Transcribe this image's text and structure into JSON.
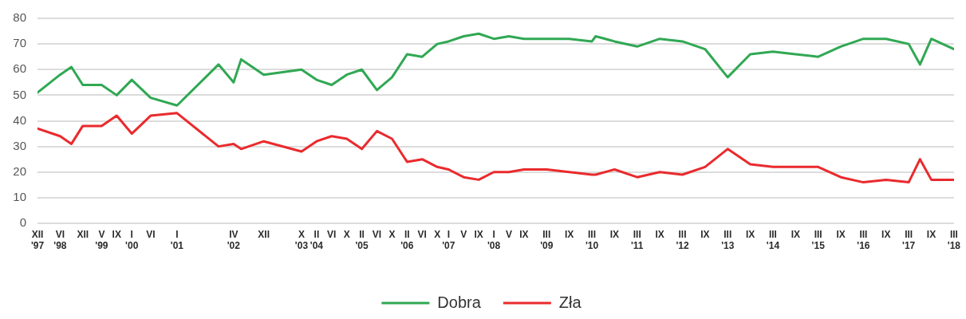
{
  "chart_data": {
    "type": "line",
    "x": [
      "1997-12",
      "1998-06",
      "1998-09",
      "1998-12",
      "1999-05",
      "1999-09",
      "2000-01",
      "2000-06",
      "2001-01",
      "2001-12",
      "2002-04",
      "2002-06",
      "2002-12",
      "2003-10",
      "2004-02",
      "2004-06",
      "2004-10",
      "2005-02",
      "2005-06",
      "2005-10",
      "2006-02",
      "2006-06",
      "2006-10",
      "2007-01",
      "2007-05",
      "2007-09",
      "2008-01",
      "2008-05",
      "2008-09",
      "2009-03",
      "2009-09",
      "2010-03",
      "2010-04",
      "2010-09",
      "2011-03",
      "2011-09",
      "2012-03",
      "2012-09",
      "2013-03",
      "2013-09",
      "2014-03",
      "2014-09",
      "2015-03",
      "2015-09",
      "2016-03",
      "2016-09",
      "2017-03",
      "2017-06",
      "2017-09",
      "2018-03"
    ],
    "series": [
      {
        "name": "Dobra",
        "color": "#30a853",
        "values": [
          51,
          58,
          61,
          54,
          54,
          50,
          56,
          49,
          46,
          62,
          55,
          64,
          58,
          60,
          56,
          54,
          58,
          60,
          52,
          57,
          66,
          65,
          70,
          71,
          73,
          74,
          72,
          73,
          72,
          72,
          72,
          71,
          73,
          71,
          69,
          72,
          71,
          68,
          57,
          66,
          67,
          66,
          65,
          69,
          72,
          72,
          70,
          62,
          72,
          68
        ]
      },
      {
        "name": "Zła",
        "color": "#ea2a2d",
        "values": [
          37,
          34,
          31,
          38,
          38,
          42,
          35,
          42,
          43,
          30,
          31,
          29,
          32,
          28,
          32,
          34,
          33,
          29,
          36,
          33,
          24,
          25,
          22,
          21,
          18,
          17,
          20,
          20,
          21,
          21,
          20,
          19,
          19,
          21,
          18,
          20,
          19,
          22,
          29,
          23,
          22,
          22,
          22,
          18,
          16,
          17,
          16,
          25,
          17,
          17
        ]
      }
    ],
    "xlim": [
      "1997-12",
      "2018-03"
    ],
    "xticks": [
      {
        "value": "1997-12",
        "label": "XII\n'97"
      },
      {
        "value": "1998-06",
        "label": "VI\n'98"
      },
      {
        "value": "1998-12",
        "label": "XII"
      },
      {
        "value": "1999-05",
        "label": "V\n'99"
      },
      {
        "value": "1999-09",
        "label": "IX"
      },
      {
        "value": "2000-01",
        "label": "I\n'00"
      },
      {
        "value": "2000-06",
        "label": "VI"
      },
      {
        "value": "2001-01",
        "label": "I\n'01"
      },
      {
        "value": "2002-04",
        "label": "IV\n'02"
      },
      {
        "value": "2002-12",
        "label": "XII"
      },
      {
        "value": "2003-10",
        "label": "X\n'03"
      },
      {
        "value": "2004-02",
        "label": "II\n'04"
      },
      {
        "value": "2004-06",
        "label": "VI"
      },
      {
        "value": "2004-10",
        "label": "X"
      },
      {
        "value": "2005-02",
        "label": "II\n'05"
      },
      {
        "value": "2005-06",
        "label": "VI"
      },
      {
        "value": "2005-10",
        "label": "X"
      },
      {
        "value": "2006-02",
        "label": "II\n'06"
      },
      {
        "value": "2006-06",
        "label": "VI"
      },
      {
        "value": "2006-10",
        "label": "X"
      },
      {
        "value": "2007-01",
        "label": "I\n'07"
      },
      {
        "value": "2007-05",
        "label": "V"
      },
      {
        "value": "2007-09",
        "label": "IX"
      },
      {
        "value": "2008-01",
        "label": "I\n'08"
      },
      {
        "value": "2008-05",
        "label": "V"
      },
      {
        "value": "2008-09",
        "label": "IX"
      },
      {
        "value": "2009-03",
        "label": "III\n'09"
      },
      {
        "value": "2009-09",
        "label": "IX"
      },
      {
        "value": "2010-03",
        "label": "III\n'10"
      },
      {
        "value": "2010-09",
        "label": "IX"
      },
      {
        "value": "2011-03",
        "label": "III\n'11"
      },
      {
        "value": "2011-09",
        "label": "IX"
      },
      {
        "value": "2012-03",
        "label": "III\n'12"
      },
      {
        "value": "2012-09",
        "label": "IX"
      },
      {
        "value": "2013-03",
        "label": "III\n'13"
      },
      {
        "value": "2013-09",
        "label": "IX"
      },
      {
        "value": "2014-03",
        "label": "III\n'14"
      },
      {
        "value": "2014-09",
        "label": "IX"
      },
      {
        "value": "2015-03",
        "label": "III\n'15"
      },
      {
        "value": "2015-09",
        "label": "IX"
      },
      {
        "value": "2016-03",
        "label": "III\n'16"
      },
      {
        "value": "2016-09",
        "label": "IX"
      },
      {
        "value": "2017-03",
        "label": "III\n'17"
      },
      {
        "value": "2017-09",
        "label": "IX"
      },
      {
        "value": "2018-03",
        "label": "III\n'18"
      }
    ],
    "ylim": [
      0,
      80
    ],
    "yticks": [
      0,
      10,
      20,
      30,
      40,
      50,
      60,
      70,
      80
    ],
    "grid": "y",
    "legend": "bottom",
    "marker": "none",
    "line_style": "solid"
  }
}
